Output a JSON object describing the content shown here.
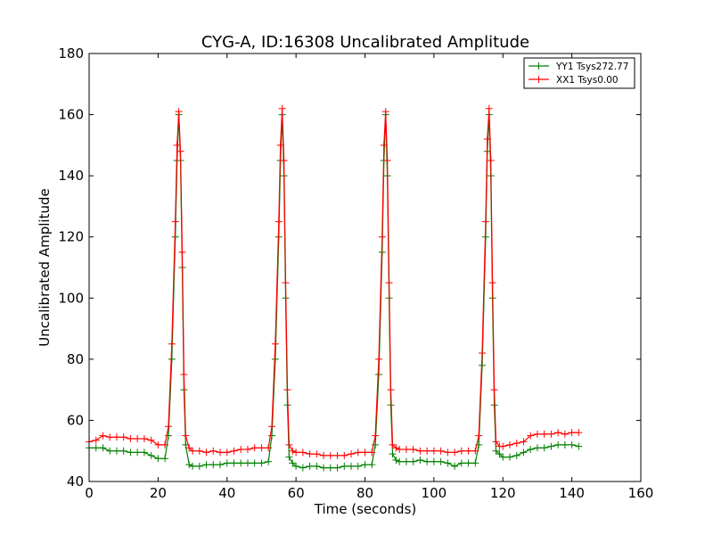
{
  "chart_data": {
    "type": "line",
    "title": "CYG-A, ID:16308 Uncalibrated Amplitude",
    "xlabel": "Time (seconds)",
    "ylabel": "Uncalibrated Amplitude",
    "xlim": [
      0,
      160
    ],
    "ylim": [
      40,
      180
    ],
    "xticks": [
      0,
      20,
      40,
      60,
      80,
      100,
      120,
      140,
      160
    ],
    "yticks": [
      40,
      60,
      80,
      100,
      120,
      140,
      160,
      180
    ],
    "grid": false,
    "legend_position": "top-right",
    "marker": "+",
    "series": [
      {
        "name": "YY1 Tsys272.77",
        "color": "#008000",
        "x": [
          0,
          2,
          4,
          6,
          8,
          10,
          12,
          14,
          16,
          18,
          20,
          22,
          23,
          24,
          25,
          25.5,
          26,
          26.5,
          27,
          27.5,
          28,
          29,
          30,
          32,
          34,
          36,
          38,
          40,
          42,
          44,
          46,
          48,
          50,
          52,
          53,
          54,
          55,
          55.5,
          56,
          56.5,
          57,
          57.5,
          58,
          59,
          60,
          62,
          64,
          66,
          68,
          70,
          72,
          74,
          76,
          78,
          80,
          82,
          83,
          84,
          85,
          85.5,
          86,
          86.5,
          87,
          87.5,
          88,
          89,
          90,
          92,
          94,
          96,
          98,
          100,
          102,
          104,
          106,
          108,
          110,
          112,
          113,
          114,
          115,
          115.5,
          116,
          116.5,
          117,
          117.5,
          118,
          119,
          120,
          122,
          124,
          126,
          128,
          130,
          132,
          134,
          136,
          138,
          140,
          142
        ],
        "values": [
          51,
          51,
          51,
          50,
          50,
          50,
          49.5,
          49.5,
          49.5,
          48.5,
          47.5,
          47.5,
          55,
          80,
          120,
          145,
          160,
          145,
          110,
          70,
          52,
          45.5,
          45,
          45,
          45.5,
          45.5,
          45.5,
          46,
          46,
          46,
          46,
          46,
          46,
          46.5,
          55,
          80,
          120,
          145,
          160,
          140,
          100,
          65,
          48,
          46,
          45,
          44.5,
          45,
          45,
          44.5,
          44.5,
          44.5,
          45,
          45,
          45,
          45.5,
          45.5,
          52,
          75,
          115,
          145,
          160,
          140,
          100,
          65,
          49,
          47,
          46.5,
          46.5,
          46.5,
          47,
          46.5,
          46.5,
          46.5,
          46,
          45,
          46,
          46,
          46,
          52,
          78,
          120,
          148,
          160,
          140,
          100,
          65,
          50,
          49,
          48,
          48,
          48.5,
          49.5,
          50.5,
          51,
          51,
          51.5,
          52,
          52,
          52,
          51.5
        ]
      },
      {
        "name": "XX1 Tsys0.00",
        "color": "#ff0000",
        "x": [
          0,
          2,
          4,
          6,
          8,
          10,
          12,
          14,
          16,
          18,
          20,
          22,
          23,
          24,
          25,
          25.5,
          26,
          26.5,
          27,
          27.5,
          28,
          29,
          30,
          32,
          34,
          36,
          38,
          40,
          42,
          44,
          46,
          48,
          50,
          52,
          53,
          54,
          55,
          55.5,
          56,
          56.5,
          57,
          57.5,
          58,
          59,
          60,
          62,
          64,
          66,
          68,
          70,
          72,
          74,
          76,
          78,
          80,
          82,
          83,
          84,
          85,
          85.5,
          86,
          86.5,
          87,
          87.5,
          88,
          89,
          90,
          92,
          94,
          96,
          98,
          100,
          102,
          104,
          106,
          108,
          110,
          112,
          113,
          114,
          115,
          115.5,
          116,
          116.5,
          117,
          117.5,
          118,
          119,
          120,
          122,
          124,
          126,
          128,
          130,
          132,
          134,
          136,
          138,
          140,
          142
        ],
        "values": [
          53,
          53.5,
          55,
          54.5,
          54.5,
          54.5,
          54,
          54,
          54,
          53.5,
          52,
          52,
          58,
          85,
          125,
          150,
          161,
          148,
          115,
          75,
          55,
          51,
          50,
          50,
          49.5,
          50,
          49.5,
          49.5,
          50,
          50.5,
          50.5,
          51,
          51,
          51,
          58,
          85,
          125,
          150,
          162,
          145,
          105,
          70,
          52,
          50,
          49.5,
          49.5,
          49,
          49,
          48.5,
          48.5,
          48.5,
          48.5,
          49,
          49.5,
          49.5,
          49.5,
          55,
          80,
          120,
          150,
          161,
          145,
          105,
          70,
          52,
          51,
          50.5,
          50.5,
          50.5,
          50,
          50,
          50,
          50,
          49.5,
          49.5,
          50,
          50,
          50,
          55,
          82,
          125,
          152,
          162,
          145,
          105,
          70,
          53,
          51.5,
          51.5,
          52,
          52.5,
          53,
          55,
          55.5,
          55.5,
          55.5,
          56,
          55.5,
          56,
          56
        ]
      }
    ]
  }
}
